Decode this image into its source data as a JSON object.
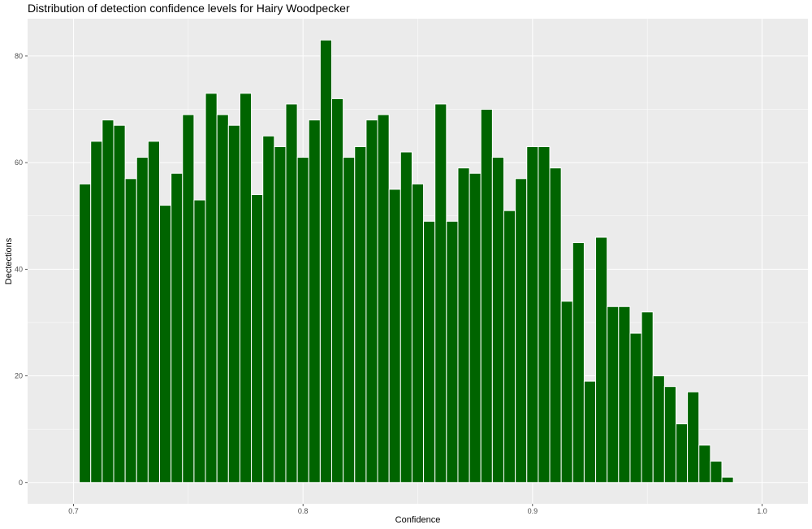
{
  "chart_data": {
    "type": "bar",
    "title": "Distribution of detection confidence levels for Hairy Woodpecker",
    "xlabel": "Confidence",
    "ylabel": "Dectections",
    "xlim": [
      0.68,
      1.02
    ],
    "ylim": [
      -4,
      87
    ],
    "x_ticks": [
      0.7,
      0.8,
      0.9,
      1.0
    ],
    "x_tick_labels": [
      "0.7",
      "0.8",
      "0.9",
      "1.0"
    ],
    "y_ticks": [
      0,
      20,
      40,
      60,
      80
    ],
    "y_tick_labels": [
      "0",
      "20",
      "40",
      "60",
      "80"
    ],
    "bin_width": 0.005,
    "bin_start": 0.7025,
    "values": [
      56,
      64,
      68,
      67,
      57,
      61,
      64,
      52,
      58,
      69,
      53,
      73,
      69,
      67,
      73,
      54,
      65,
      63,
      71,
      61,
      68,
      83,
      72,
      61,
      63,
      68,
      69,
      55,
      62,
      56,
      49,
      71,
      49,
      59,
      58,
      70,
      61,
      51,
      57,
      63,
      63,
      59,
      34,
      45,
      19,
      46,
      33,
      33,
      28,
      32,
      20,
      18,
      11,
      17,
      7,
      4,
      1
    ],
    "grid": true,
    "colors": {
      "bar_fill": "#006400",
      "bar_outline": "#ffffff",
      "panel": "#ebebeb",
      "grid": "#ffffff"
    }
  }
}
